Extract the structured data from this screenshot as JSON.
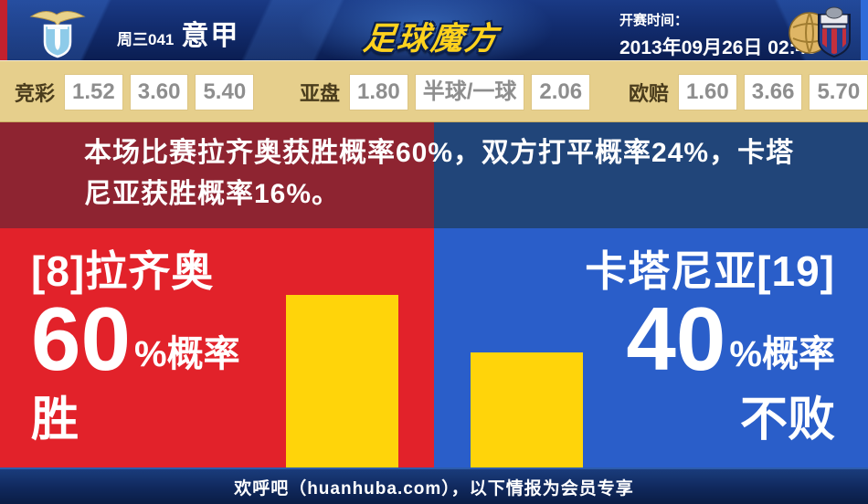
{
  "header": {
    "match_code": "周三041",
    "league": "意甲",
    "brand": "足球魔方",
    "kickoff_label": "开赛时间：",
    "kickoff_time": "2013年09月26日 02:45",
    "home_badge": "lazio-crest",
    "away_badge": "catania-crest"
  },
  "odds": {
    "groups": [
      {
        "label": "竞彩",
        "values": [
          "1.52",
          "3.60",
          "5.40"
        ]
      },
      {
        "label": "亚盘",
        "values": [
          "1.80",
          "半球/一球",
          "2.06"
        ]
      },
      {
        "label": "欧赔",
        "values": [
          "1.60",
          "3.66",
          "5.70"
        ]
      }
    ]
  },
  "summary": {
    "text": "本场比赛拉齐奥获胜概率60%，双方打平概率24%，卡塔尼亚获胜概率16%。"
  },
  "chart_data": {
    "type": "bar",
    "categories": [
      "拉齐奥 胜",
      "卡塔尼亚 不败"
    ],
    "values": [
      60,
      40
    ],
    "unit": "%",
    "bar_color": "#ffd40a",
    "probabilities": {
      "home_win": 60,
      "draw": 24,
      "away_win": 16
    }
  },
  "home_panel": {
    "team": "[8]拉齐奥",
    "pct": "60",
    "pct_suffix": "%概率",
    "outcome": "胜"
  },
  "away_panel": {
    "team": "卡塔尼亚[19]",
    "pct": "40",
    "pct_suffix": "%概率",
    "outcome": "不败"
  },
  "footer": {
    "text": "欢呼吧（huanhuba.com），以下情报为会员专享"
  },
  "colors": {
    "home_red": "#e2222a",
    "home_dark_red": "#8e2431",
    "away_blue": "#2a5ec9",
    "away_dark_blue": "#214579",
    "bar_yellow": "#ffd40a",
    "odds_bg": "#e6cf8c",
    "header_navy": "#122c6e",
    "brand_gold": "#ffd21e"
  }
}
